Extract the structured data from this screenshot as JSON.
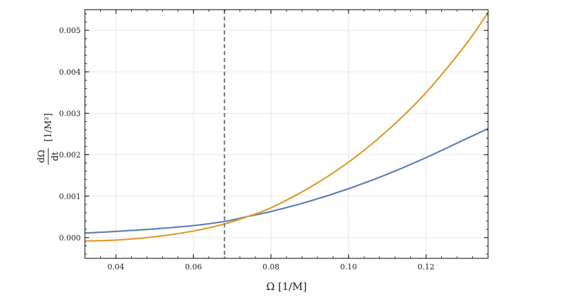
{
  "chart_data": {
    "type": "line",
    "xlabel": "Ω [1/M]",
    "ylabel_numerator": "dΩ",
    "ylabel_denominator": "dt",
    "ylabel_units": "[1/M²]",
    "xlim": [
      0.032,
      0.136
    ],
    "ylim": [
      -0.0005,
      0.0055
    ],
    "grid": true,
    "x_ticks": [
      {
        "value": 0.04,
        "label": "0.04"
      },
      {
        "value": 0.06,
        "label": "0.06"
      },
      {
        "value": 0.08,
        "label": "0.08"
      },
      {
        "value": 0.1,
        "label": "0.10"
      },
      {
        "value": 0.12,
        "label": "0.12"
      }
    ],
    "y_ticks": [
      {
        "value": 0.0,
        "label": "0.000"
      },
      {
        "value": 0.001,
        "label": "0.001"
      },
      {
        "value": 0.002,
        "label": "0.002"
      },
      {
        "value": 0.003,
        "label": "0.003"
      },
      {
        "value": 0.004,
        "label": "0.004"
      },
      {
        "value": 0.005,
        "label": "0.005"
      }
    ],
    "vertical_line": {
      "x": 0.068,
      "style": "dashed",
      "color": "#777777"
    },
    "series": [
      {
        "color": "#5b7fb6",
        "x": [
          0.032,
          0.04,
          0.05,
          0.06,
          0.068,
          0.074,
          0.08,
          0.09,
          0.1,
          0.11,
          0.12,
          0.13,
          0.136
        ],
        "y": [
          0.00011,
          0.00015,
          0.00021,
          0.00029,
          0.00039,
          0.00051,
          0.00063,
          0.00088,
          0.00118,
          0.00153,
          0.00193,
          0.00237,
          0.00263
        ]
      },
      {
        "color": "#e09b2d",
        "x": [
          0.032,
          0.04,
          0.05,
          0.06,
          0.068,
          0.074,
          0.08,
          0.09,
          0.1,
          0.11,
          0.12,
          0.13,
          0.136
        ],
        "y": [
          -8e-05,
          -6e-05,
          2e-05,
          0.00016,
          0.00033,
          0.00051,
          0.00072,
          0.00121,
          0.00182,
          0.00258,
          0.0035,
          0.00463,
          0.00543
        ]
      }
    ]
  }
}
